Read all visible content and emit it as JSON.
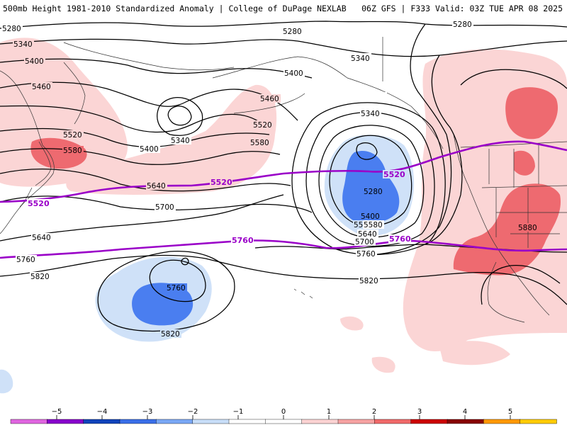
{
  "header": {
    "title_left": "500mb Height 1981-2010 Standardized Anomaly | College of DuPage NEXLAB",
    "title_right": "06Z GFS | F333 Valid: 03Z TUE APR 08 2025"
  },
  "contour_labels": [
    {
      "text": "5280"
    },
    {
      "text": "5280"
    },
    {
      "text": "5280"
    },
    {
      "text": "5340"
    },
    {
      "text": "5340"
    },
    {
      "text": "5400"
    },
    {
      "text": "5400"
    },
    {
      "text": "5460"
    },
    {
      "text": "5460"
    },
    {
      "text": "5520"
    },
    {
      "text": "5520"
    },
    {
      "text": "5580"
    },
    {
      "text": "5640"
    },
    {
      "text": "5700"
    },
    {
      "text": "5640"
    },
    {
      "text": "5760"
    },
    {
      "text": "5820"
    },
    {
      "text": "5340"
    },
    {
      "text": "5400"
    },
    {
      "text": "5460"
    },
    {
      "text": "5520"
    },
    {
      "text": "5580"
    },
    {
      "text": "5340"
    },
    {
      "text": "5280"
    },
    {
      "text": "5400"
    },
    {
      "text": "5520"
    },
    {
      "text": "5580"
    },
    {
      "text": "5640"
    },
    {
      "text": "5700"
    },
    {
      "text": "5760"
    },
    {
      "text": "5820"
    },
    {
      "text": "5760"
    },
    {
      "text": "5820"
    },
    {
      "text": "5880"
    },
    {
      "text": "5340"
    }
  ],
  "purple_labels": [
    {
      "text": "5520"
    },
    {
      "text": "5520"
    },
    {
      "text": "5520"
    },
    {
      "text": "5760"
    },
    {
      "text": "5760"
    }
  ],
  "colorbar": {
    "ticks": [
      "−5",
      "−4",
      "−3",
      "−2",
      "−1",
      "0",
      "1",
      "2",
      "3",
      "4",
      "5"
    ],
    "colors": [
      "#e066e0",
      "#8800cc",
      "#1144bb",
      "#3a6fe8",
      "#7aa8f5",
      "#c8def8",
      "#ffffff",
      "#ffffff",
      "#fbd3d3",
      "#f6a3a3",
      "#f06a6a",
      "#cc0000",
      "#880000",
      "#ff9900",
      "#ffcc00"
    ]
  },
  "colors": {
    "pos_light": "#fbd5d5",
    "pos_mid": "#f5a6a8",
    "pos_strong": "#ee6a70",
    "neg_light": "#cfe1f8",
    "neg_mid": "#4a7ef0",
    "contour": "#000000",
    "reference_line": "#9a00c8",
    "coast": "#333333"
  }
}
